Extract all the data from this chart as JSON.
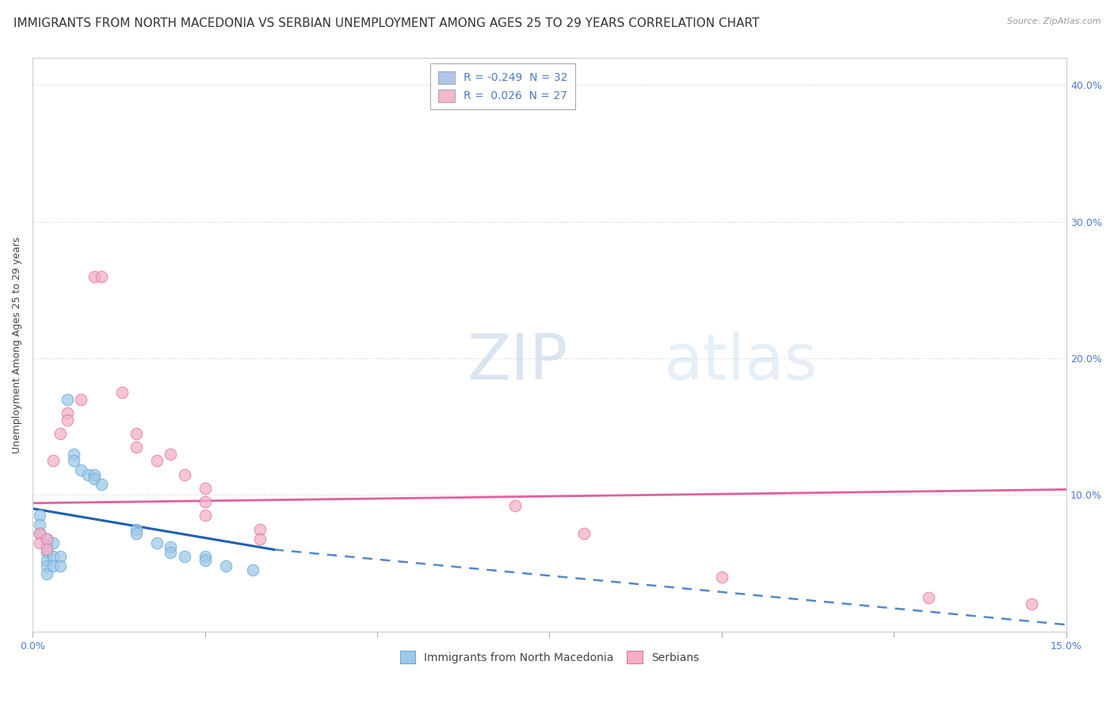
{
  "title": "IMMIGRANTS FROM NORTH MACEDONIA VS SERBIAN UNEMPLOYMENT AMONG AGES 25 TO 29 YEARS CORRELATION CHART",
  "source": "Source: ZipAtlas.com",
  "ylabel": "Unemployment Among Ages 25 to 29 years",
  "xlim": [
    0.0,
    0.15
  ],
  "ylim": [
    0.0,
    0.42
  ],
  "xtick_vals": [
    0.0,
    0.025,
    0.05,
    0.075,
    0.1,
    0.125,
    0.15
  ],
  "xtick_labels": [
    "0.0%",
    "",
    "",
    "",
    "",
    "",
    "15.0%"
  ],
  "ytick_vals": [
    0.0,
    0.1,
    0.2,
    0.3,
    0.4
  ],
  "ytick_labels_right": [
    "",
    "10.0%",
    "20.0%",
    "30.0%",
    "40.0%"
  ],
  "legend_entries": [
    {
      "label": "R = -0.249  N = 32",
      "color": "#aec6e8"
    },
    {
      "label": "R =  0.026  N = 27",
      "color": "#f4b8c8"
    }
  ],
  "watermark": "ZIPatlas",
  "scatter_north_macedonia": [
    [
      0.001,
      0.085
    ],
    [
      0.001,
      0.078
    ],
    [
      0.001,
      0.072
    ],
    [
      0.002,
      0.068
    ],
    [
      0.002,
      0.063
    ],
    [
      0.002,
      0.058
    ],
    [
      0.002,
      0.052
    ],
    [
      0.002,
      0.048
    ],
    [
      0.002,
      0.042
    ],
    [
      0.003,
      0.065
    ],
    [
      0.003,
      0.055
    ],
    [
      0.003,
      0.048
    ],
    [
      0.004,
      0.055
    ],
    [
      0.004,
      0.048
    ],
    [
      0.005,
      0.17
    ],
    [
      0.006,
      0.13
    ],
    [
      0.006,
      0.125
    ],
    [
      0.007,
      0.118
    ],
    [
      0.008,
      0.115
    ],
    [
      0.009,
      0.115
    ],
    [
      0.009,
      0.112
    ],
    [
      0.01,
      0.108
    ],
    [
      0.015,
      0.075
    ],
    [
      0.015,
      0.072
    ],
    [
      0.018,
      0.065
    ],
    [
      0.02,
      0.062
    ],
    [
      0.02,
      0.058
    ],
    [
      0.022,
      0.055
    ],
    [
      0.025,
      0.055
    ],
    [
      0.025,
      0.052
    ],
    [
      0.028,
      0.048
    ],
    [
      0.032,
      0.045
    ]
  ],
  "scatter_serbians": [
    [
      0.001,
      0.072
    ],
    [
      0.001,
      0.065
    ],
    [
      0.002,
      0.068
    ],
    [
      0.002,
      0.06
    ],
    [
      0.003,
      0.125
    ],
    [
      0.004,
      0.145
    ],
    [
      0.005,
      0.16
    ],
    [
      0.005,
      0.155
    ],
    [
      0.007,
      0.17
    ],
    [
      0.009,
      0.26
    ],
    [
      0.01,
      0.26
    ],
    [
      0.013,
      0.175
    ],
    [
      0.015,
      0.145
    ],
    [
      0.015,
      0.135
    ],
    [
      0.018,
      0.125
    ],
    [
      0.02,
      0.13
    ],
    [
      0.022,
      0.115
    ],
    [
      0.025,
      0.105
    ],
    [
      0.025,
      0.095
    ],
    [
      0.025,
      0.085
    ],
    [
      0.033,
      0.075
    ],
    [
      0.033,
      0.068
    ],
    [
      0.07,
      0.092
    ],
    [
      0.08,
      0.072
    ],
    [
      0.1,
      0.04
    ],
    [
      0.13,
      0.025
    ],
    [
      0.145,
      0.02
    ]
  ],
  "trendline_nm_solid": {
    "x": [
      0.0,
      0.035
    ],
    "y": [
      0.09,
      0.06
    ]
  },
  "trendline_nm_dashed": {
    "x": [
      0.035,
      0.15
    ],
    "y": [
      0.06,
      0.005
    ]
  },
  "trendline_serb": {
    "x": [
      0.0,
      0.15
    ],
    "y": [
      0.094,
      0.104
    ]
  },
  "color_nm": "#9ec9e8",
  "color_nm_edge": "#6aaad4",
  "color_serb": "#f4b0c8",
  "color_serb_edge": "#e07898",
  "trendline_nm_color": "#2060b0",
  "trendline_serb_color": "#e060a0",
  "background_color": "#ffffff",
  "grid_color": "#d0d0d0",
  "title_fontsize": 11,
  "axis_fontsize": 9,
  "legend_fontsize": 10
}
